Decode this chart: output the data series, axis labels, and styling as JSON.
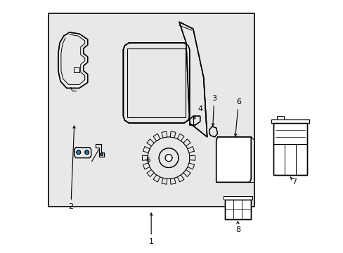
{
  "bg_color": "#ffffff",
  "box_bg": "#e8e8e8",
  "line_color": "#000000",
  "fig_width": 4.89,
  "fig_height": 3.6,
  "dpi": 100,
  "text_fontsize": 8
}
